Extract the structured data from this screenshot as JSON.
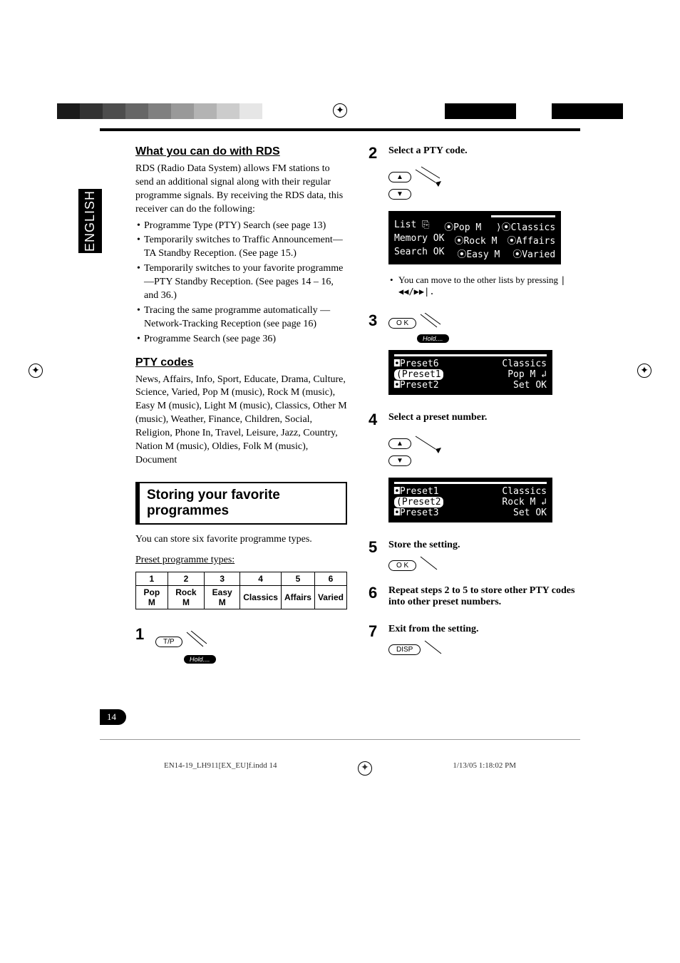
{
  "print_marks": {
    "gray_bars": [
      "#1a1a1a",
      "#333333",
      "#4d4d4d",
      "#666666",
      "#808080",
      "#999999",
      "#b3b3b3",
      "#cccccc",
      "#e6e6e6",
      "#ffffff"
    ],
    "black_bars": [
      "#000000",
      "#000000",
      "#ffffff",
      "#000000",
      "#000000"
    ]
  },
  "lang_tab": "ENGLISH",
  "left_col": {
    "rds": {
      "title": "What you can do with RDS",
      "intro": "RDS (Radio Data System) allows FM stations to send an additional signal along with their regular programme signals. By receiving the RDS data, this receiver can do the following:",
      "bullets": [
        "Programme Type (PTY) Search (see page 13)",
        "Temporarily switches to Traffic Announcement—TA Standby Reception. (See page 15.)",
        "Temporarily switches to your favorite programme—PTY Standby Reception. (See pages 14 – 16, and 36.)",
        "Tracing the same programme automatically —Network-Tracking Reception (see page 16)",
        "Programme Search (see page 36)"
      ]
    },
    "pty": {
      "title": "PTY codes",
      "body": "News, Affairs, Info, Sport, Educate, Drama, Culture, Science, Varied, Pop M (music), Rock M (music), Easy M (music), Light M (music), Classics, Other M (music), Weather, Finance, Children, Social, Religion, Phone In, Travel, Leisure, Jazz, Country, Nation M (music), Oldies, Folk M (music), Document"
    },
    "storing": {
      "box_title": "Storing your favorite programmes",
      "intro": "You can store six favorite programme types.",
      "preset_label": "Preset programme types:",
      "headers": [
        "1",
        "2",
        "3",
        "4",
        "5",
        "6"
      ],
      "values": [
        "Pop M",
        "Rock M",
        "Easy M",
        "Classics",
        "Affairs",
        "Varied"
      ]
    }
  },
  "steps": {
    "s1": {
      "num": "1",
      "btn": "T/P",
      "hold": "Hold...."
    },
    "s2": {
      "num": "2",
      "label": "Select a PTY code.",
      "lcd_rows": [
        [
          "List ⎘",
          "⦿Pop M",
          "⟩⦿Classics"
        ],
        [
          "Memory OK",
          "⦿Rock M",
          "⦿Affairs"
        ],
        [
          "Search OK",
          "⦿Easy M",
          "⦿Varied"
        ]
      ],
      "note": "You can move to the other lists by pressing ",
      "skip_icons": "|◀◀/▶▶|."
    },
    "s3": {
      "num": "3",
      "btn": "O K",
      "hold": "Hold....",
      "lcd_rows": [
        [
          "◘Preset6",
          "Classics"
        ],
        [
          "(Preset1",
          "Pop M  ↲"
        ],
        [
          "◘Preset2",
          "Set OK"
        ]
      ]
    },
    "s4": {
      "num": "4",
      "label": "Select a preset number.",
      "lcd_rows": [
        [
          "◘Preset1",
          "Classics"
        ],
        [
          "(Preset2",
          "Rock M  ↲"
        ],
        [
          "◘Preset3",
          "Set OK"
        ]
      ]
    },
    "s5": {
      "num": "5",
      "label": "Store the setting.",
      "btn": "O K"
    },
    "s6": {
      "num": "6",
      "label_before": "Repeat steps ",
      "bold1": "2",
      "mid": " to ",
      "bold2": "5",
      "label_after": " to store other PTY codes into other preset numbers."
    },
    "s7": {
      "num": "7",
      "label": "Exit from the setting.",
      "btn": "DISP"
    }
  },
  "page_num": "14",
  "footer": {
    "left": "EN14-19_LH911[EX_EU]f.indd   14",
    "right": "1/13/05   1:18:02 PM"
  }
}
